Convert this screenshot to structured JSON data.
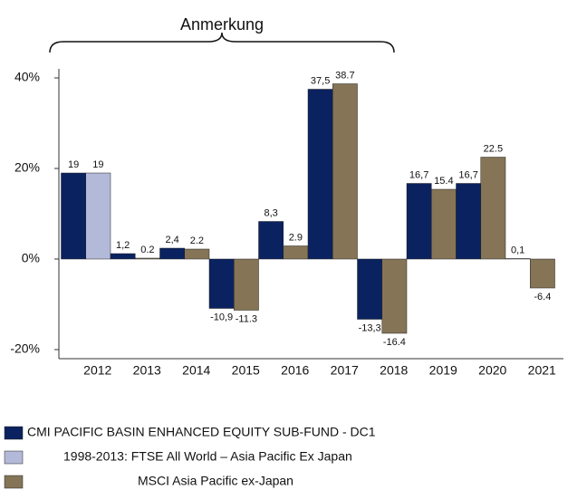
{
  "chart_data": {
    "type": "bar",
    "annotations": [
      "Anmerkung"
    ],
    "categories": [
      "2012",
      "2013",
      "2014",
      "2015",
      "2016",
      "2017",
      "2018",
      "2019",
      "2020",
      "2021"
    ],
    "series": [
      {
        "name": "CMI PACIFIC BASIN ENHANCED EQUITY SUB-FUND - DC1",
        "color": "#0b2260",
        "values": [
          19,
          1.2,
          2.4,
          -10.9,
          8.3,
          37.5,
          -13.3,
          16.7,
          16.7,
          0.1
        ],
        "value_labels": [
          "19",
          "1,2",
          "2,4",
          "-10,9",
          "8,3",
          "37,5",
          "-13,3",
          "16,7",
          "16,7",
          "0,1"
        ]
      },
      {
        "name": "1998-2013: FTSE All World – Asia Pacific Ex Japan",
        "color": "#b3b9d8",
        "values": [
          19,
          null,
          null,
          null,
          null,
          null,
          null,
          null,
          null,
          null
        ]
      },
      {
        "name": "MSCI Asia Pacific ex-Japan",
        "color": "#857456",
        "values": [
          null,
          0.2,
          2.2,
          -11.3,
          2.9,
          38.7,
          -16.4,
          15.4,
          22.5,
          -6.4
        ]
      }
    ],
    "ylim": [
      -22,
      42
    ],
    "yticks": [
      {
        "value": -20,
        "label": "-20%"
      },
      {
        "value": 0,
        "label": "0%"
      },
      {
        "value": 20,
        "label": "20%"
      },
      {
        "value": 40,
        "label": "40%"
      }
    ],
    "grid": false
  }
}
